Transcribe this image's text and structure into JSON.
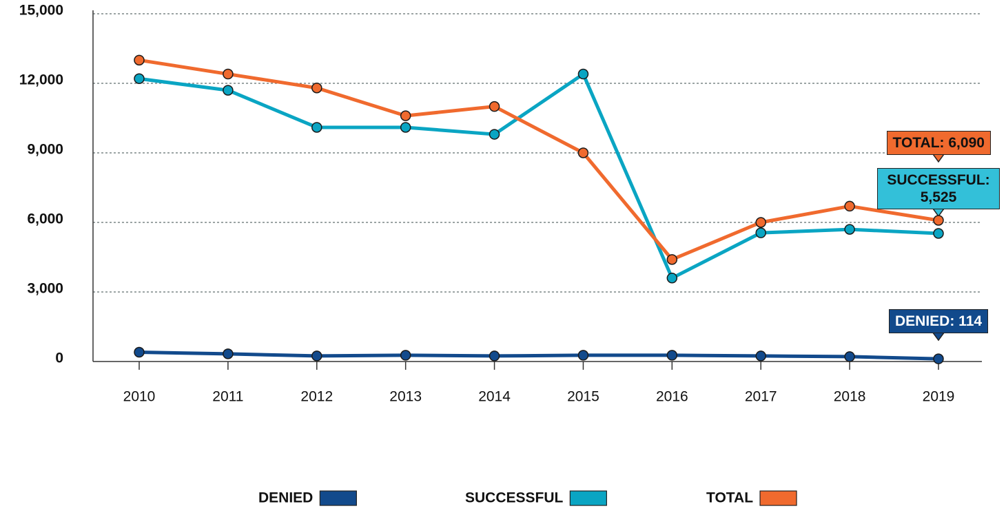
{
  "chart_data": {
    "type": "line",
    "x": [
      2010,
      2011,
      2012,
      2013,
      2014,
      2015,
      2016,
      2017,
      2018,
      2019
    ],
    "xticks": [
      2010,
      2011,
      2012,
      2013,
      2014,
      2015,
      2016,
      2017,
      2018,
      2019
    ],
    "xlim": [
      2009.5,
      2019.5
    ],
    "ylim": [
      0,
      15000
    ],
    "yticks": [
      0,
      {
        "value": 3000,
        "label": "3,000"
      },
      {
        "value": 6000,
        "label": "6,000"
      },
      {
        "value": 9000,
        "label": "9,000"
      },
      {
        "value": 12000,
        "label": "12,000"
      },
      {
        "value": 15000,
        "label": "15,000"
      }
    ],
    "grid": true,
    "legend": "bottom",
    "series": [
      {
        "name": "DENIED",
        "color": "#124a8c",
        "values": [
          400,
          330,
          240,
          270,
          240,
          270,
          270,
          240,
          210,
          114
        ],
        "value_labels": [
          null,
          null,
          null,
          null,
          null,
          null,
          null,
          null,
          null,
          "DENIED: 114"
        ]
      },
      {
        "name": "SUCCESSFUL",
        "color": "#0aa5c3",
        "values": [
          12200,
          11700,
          10100,
          10100,
          9800,
          12400,
          3600,
          5550,
          5700,
          5525
        ],
        "value_labels": [
          null,
          null,
          null,
          null,
          null,
          null,
          null,
          null,
          null,
          "SUCCESSFUL: 5,525"
        ]
      },
      {
        "name": "TOTAL",
        "color": "#f06a2e",
        "values": [
          13000,
          12400,
          11800,
          10600,
          11000,
          9000,
          4400,
          6000,
          6700,
          6090
        ],
        "value_labels": [
          null,
          null,
          null,
          null,
          null,
          null,
          null,
          null,
          null,
          "TOTAL: 6,090"
        ]
      }
    ]
  }
}
